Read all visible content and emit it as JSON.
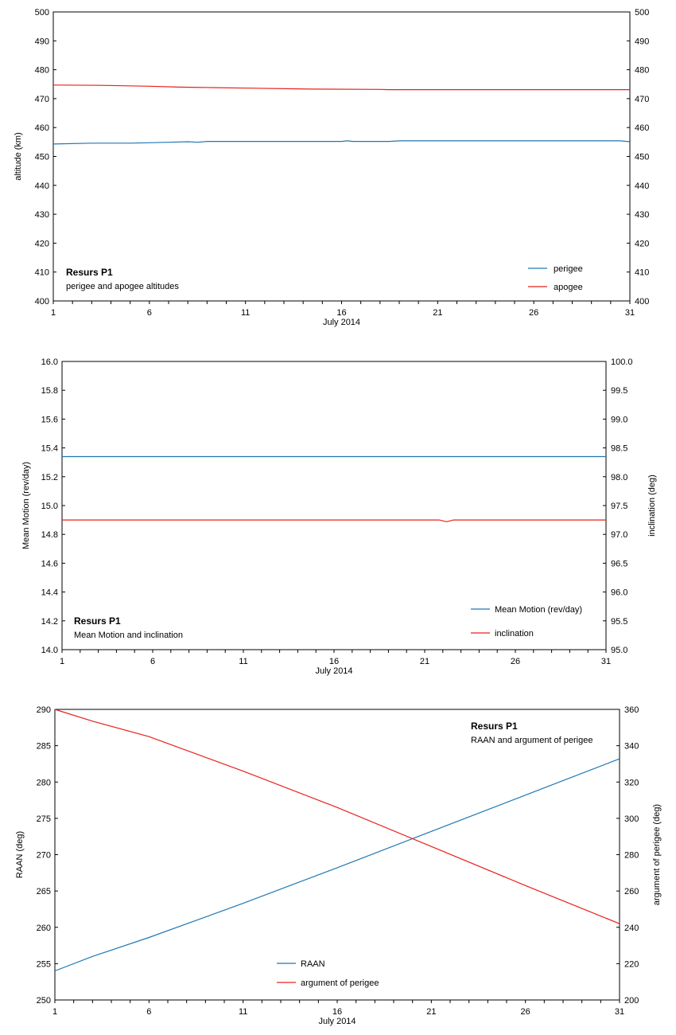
{
  "chart_data": [
    {
      "type": "line",
      "title": "Resurs P1",
      "subtitle": "perigee and apogee altitudes",
      "xlabel": "July 2014",
      "ylabel": "altitude (km)",
      "y2label": "",
      "xlim": [
        1,
        31
      ],
      "ylim": [
        400,
        500
      ],
      "y2lim": [
        400,
        500
      ],
      "xticks": [
        "1",
        "6",
        "11",
        "16",
        "21",
        "26",
        "31"
      ],
      "yticks": [
        "400",
        "410",
        "420",
        "430",
        "440",
        "450",
        "460",
        "470",
        "480",
        "490",
        "500"
      ],
      "y2ticks": [
        "400",
        "410",
        "420",
        "430",
        "440",
        "450",
        "460",
        "470",
        "480",
        "490",
        "500"
      ],
      "legend_position": "bottom-right",
      "series": [
        {
          "name": "perigee",
          "axis": "left",
          "color": "#1f77b4",
          "x": [
            1,
            3,
            5,
            7,
            8,
            8.5,
            9,
            12,
            16,
            16.3,
            16.6,
            18.5,
            19,
            25,
            30.5,
            31
          ],
          "y": [
            454.3,
            454.6,
            454.6,
            454.9,
            455.1,
            454.9,
            455.2,
            455.2,
            455.2,
            455.4,
            455.2,
            455.2,
            455.4,
            455.4,
            455.4,
            455.1
          ]
        },
        {
          "name": "apogee",
          "axis": "left",
          "color": "#e8201a",
          "x": [
            1,
            3.5,
            6,
            7.5,
            9.5,
            11.5,
            14.5,
            18,
            18.5,
            31
          ],
          "y": [
            474.7,
            474.6,
            474.3,
            474,
            473.8,
            473.6,
            473.3,
            473.2,
            473.1,
            473.1
          ]
        }
      ]
    },
    {
      "type": "line",
      "title": "Resurs P1",
      "subtitle": "Mean Motion and inclination",
      "xlabel": "July 2014",
      "ylabel": "Mean Motion (rev/day)",
      "y2label": "inclination (deg)",
      "xlim": [
        1,
        31
      ],
      "ylim": [
        14.0,
        16.0
      ],
      "y2lim": [
        95.0,
        100.0
      ],
      "xticks": [
        "1",
        "6",
        "11",
        "16",
        "21",
        "26",
        "31"
      ],
      "yticks": [
        "14.0",
        "14.2",
        "14.4",
        "14.6",
        "14.8",
        "15.0",
        "15.2",
        "15.4",
        "15.6",
        "15.8",
        "16.0"
      ],
      "y2ticks": [
        "95.0",
        "95.5",
        "96.0",
        "96.5",
        "97.0",
        "97.5",
        "98.0",
        "98.5",
        "99.0",
        "99.5",
        "100.0"
      ],
      "legend_position": "bottom-right",
      "series": [
        {
          "name": "Mean Motion (rev/day)",
          "axis": "left",
          "color": "#1f77b4",
          "x": [
            1,
            31
          ],
          "y": [
            15.34,
            15.34
          ]
        },
        {
          "name": "inclination",
          "axis": "right",
          "color": "#e8201a",
          "x": [
            1,
            21.8,
            22.2,
            22.6,
            31
          ],
          "y": [
            97.25,
            97.25,
            97.22,
            97.25,
            97.25
          ]
        }
      ]
    },
    {
      "type": "line",
      "title": "Resurs P1",
      "subtitle": "RAAN  and argument of perigee",
      "xlabel": "July 2014",
      "ylabel": "RAAN (deg)",
      "y2label": "argument of perigee (deg)",
      "xlim": [
        1,
        31
      ],
      "ylim": [
        250,
        290
      ],
      "y2lim": [
        200,
        360
      ],
      "xticks": [
        "1",
        "6",
        "11",
        "16",
        "21",
        "26",
        "31"
      ],
      "yticks": [
        "250",
        "255",
        "260",
        "265",
        "270",
        "275",
        "280",
        "285",
        "290"
      ],
      "y2ticks": [
        "200",
        "220",
        "240",
        "260",
        "280",
        "300",
        "320",
        "340",
        "360"
      ],
      "legend_position": "bottom-left",
      "series": [
        {
          "name": "RAAN",
          "axis": "left",
          "color": "#1f77b4",
          "x": [
            1,
            3,
            6,
            11,
            16,
            21,
            26,
            31
          ],
          "y": [
            254,
            256,
            258.6,
            263.3,
            268.2,
            273.2,
            278.2,
            283.2
          ]
        },
        {
          "name": "argument of perigee",
          "axis": "right",
          "color": "#e8201a",
          "x": [
            1,
            3,
            6,
            11,
            16,
            21,
            26,
            31
          ],
          "y": [
            360,
            353.5,
            345,
            326,
            306,
            284.5,
            263,
            242
          ]
        }
      ]
    }
  ]
}
